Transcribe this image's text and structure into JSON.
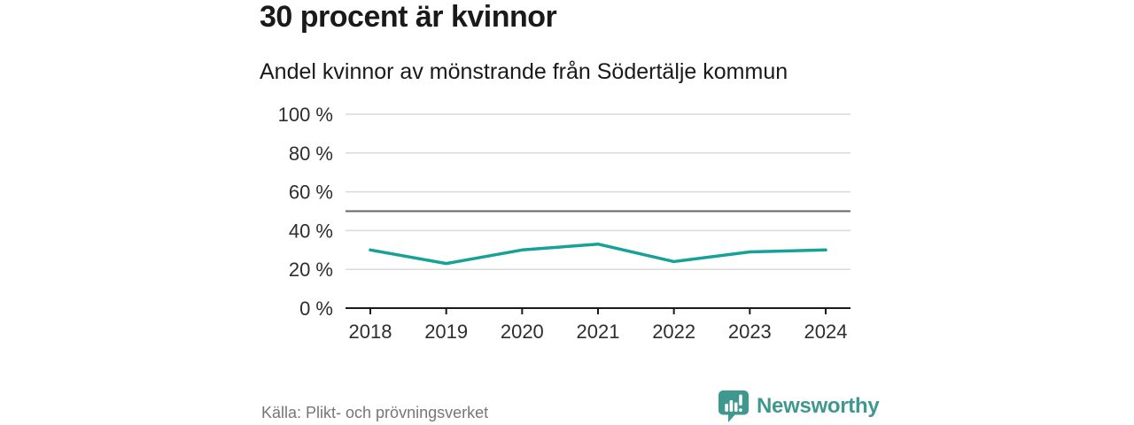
{
  "header": {
    "title": "30 procent är kvinnor",
    "subtitle": "Andel kvinnor av mönstrande från Södertälje kommun"
  },
  "chart_data": {
    "type": "line",
    "title": "30 procent är kvinnor",
    "subtitle": "Andel kvinnor av mönstrande från Södertälje kommun",
    "x": [
      "2018",
      "2019",
      "2020",
      "2021",
      "2022",
      "2023",
      "2024"
    ],
    "series": [
      {
        "name": "Andel kvinnor av mönstrande",
        "values": [
          30,
          23,
          30,
          33,
          24,
          29,
          30
        ],
        "color": "#16a296"
      }
    ],
    "unit": "%",
    "ylim": [
      0,
      100
    ],
    "yticks": [
      0,
      20,
      40,
      60,
      80,
      100
    ],
    "ytick_suffix": " %",
    "reference_line": 50,
    "grid": true,
    "legend": "none",
    "xlabel": "",
    "ylabel": "",
    "colors": {
      "line": "#16a296",
      "grid": "#d9d9d9",
      "reference_line": "#666666",
      "axis": "#1a1a1a",
      "tick_label": "#2e2e2e"
    }
  },
  "footer": {
    "source": "Källa: Plikt- och prövningsverket",
    "brand": {
      "name": "Newsworthy",
      "color": "#3f988f"
    }
  }
}
